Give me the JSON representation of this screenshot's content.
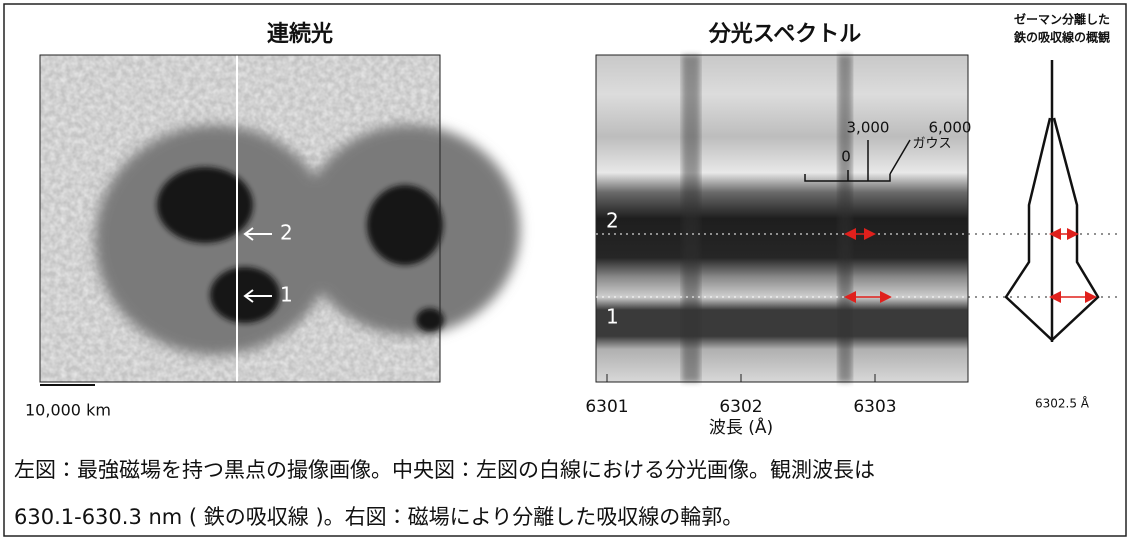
{
  "left": {
    "title": "連続光",
    "marker_2": "2",
    "marker_1": "1",
    "scale_label": "10,000 km"
  },
  "center": {
    "title": "分光スペクトル",
    "marker_2": "2",
    "marker_1": "1",
    "x_ticks": [
      "6301",
      "6302",
      "6303"
    ],
    "x_label": "波長 (Å)",
    "scale": {
      "zero": "0",
      "mid": "3,000",
      "high": "6,000",
      "unit": "ガウス"
    }
  },
  "right": {
    "title_lines": [
      "ゼーマン分離した",
      "鉄の吸収線の概観"
    ],
    "x_label": "6302.5 Å"
  },
  "caption": [
    "左図：最強磁場を持つ黒点の撮像画像。中央図：左図の白線における分光画像。観測波長は",
    "630.1-630.3 nm ( 鉄の吸収線 )。右図：磁場により分離した吸収線の輪郭。"
  ]
}
